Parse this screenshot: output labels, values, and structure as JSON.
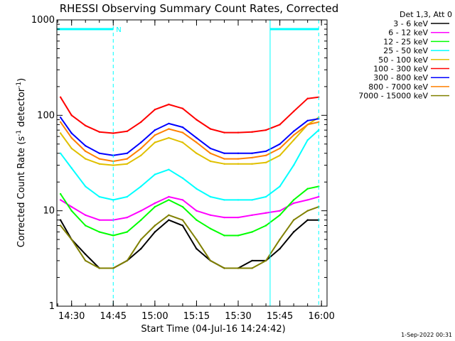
{
  "chart_data": {
    "type": "line",
    "title": "RHESSI Observing Summary Count Rates, Corrected",
    "ylabel_prefix": "Corrected Count Rate (s",
    "ylabel_sup1": "-1",
    "ylabel_mid": " detector",
    "ylabel_sup2": "-1",
    "ylabel_suffix": ")",
    "xlabel": "Start Time (04-Jul-16 14:24:42)",
    "stamp": "1-Sep-2022 00:31",
    "y_scale": "log",
    "ylim": [
      1,
      1000
    ],
    "xlim": [
      "14:24:42",
      "16:02:00"
    ],
    "x_ticks": [
      "14:30",
      "14:45",
      "15:00",
      "15:15",
      "15:30",
      "15:45",
      "16:00"
    ],
    "y_ticks": [
      "1",
      "10",
      "100",
      "1000"
    ],
    "legend_header": "Det 1,3, Att 0",
    "legend_position": "right",
    "night_intervals": [
      [
        "14:24:42",
        "14:45:00"
      ],
      [
        "15:41:30",
        "15:59:00"
      ]
    ],
    "saa_marker_text": "N",
    "night_color": "#00ffff",
    "x": [
      "14:26",
      "14:30",
      "14:35",
      "14:40",
      "14:45",
      "14:50",
      "14:55",
      "15:00",
      "15:05",
      "15:10",
      "15:15",
      "15:20",
      "15:25",
      "15:30",
      "15:35",
      "15:40",
      "15:45",
      "15:50",
      "15:55",
      "15:59"
    ],
    "series": [
      {
        "name": "3 - 6 keV",
        "color": "#000000",
        "values": [
          8,
          5,
          3.5,
          2.5,
          2.5,
          3,
          4,
          6,
          8,
          7,
          4,
          3,
          2.5,
          2.5,
          3,
          3,
          4,
          6,
          8,
          8
        ]
      },
      {
        "name": "6 - 12 keV",
        "color": "#ff00ff",
        "values": [
          13,
          11,
          9,
          8,
          8,
          8.5,
          10,
          12,
          14,
          13,
          10,
          9,
          8.5,
          8.5,
          9,
          9.5,
          10,
          12,
          13,
          14
        ]
      },
      {
        "name": "12 - 25 keV",
        "color": "#00ff00",
        "values": [
          15,
          10,
          7,
          6,
          5.5,
          6,
          8,
          11,
          13,
          11,
          8,
          6.5,
          5.5,
          5.5,
          6,
          7,
          9,
          13,
          17,
          18
        ]
      },
      {
        "name": "25 - 50 keV",
        "color": "#00ffff",
        "values": [
          40,
          28,
          18,
          14,
          13,
          14,
          18,
          24,
          27,
          22,
          17,
          14,
          13,
          13,
          13,
          14,
          18,
          30,
          55,
          70
        ]
      },
      {
        "name": "50 - 100 keV",
        "color": "#e0c000",
        "values": [
          65,
          45,
          35,
          31,
          30,
          31,
          38,
          52,
          58,
          52,
          40,
          33,
          31,
          31,
          31,
          32,
          38,
          55,
          80,
          95
        ]
      },
      {
        "name": "100 - 300 keV",
        "color": "#ff0000",
        "values": [
          155,
          100,
          78,
          67,
          65,
          68,
          85,
          115,
          130,
          118,
          90,
          72,
          66,
          66,
          67,
          70,
          80,
          110,
          150,
          155
        ]
      },
      {
        "name": "300 - 800 keV",
        "color": "#0000ff",
        "values": [
          95,
          65,
          48,
          40,
          38,
          40,
          52,
          70,
          82,
          75,
          58,
          45,
          40,
          40,
          40,
          42,
          50,
          68,
          88,
          92
        ]
      },
      {
        "name": "800 - 7000 keV",
        "color": "#ff8000",
        "values": [
          85,
          58,
          42,
          35,
          33,
          35,
          45,
          62,
          72,
          66,
          52,
          40,
          35,
          35,
          36,
          38,
          45,
          62,
          80,
          85
        ]
      },
      {
        "name": "7000 - 15000 keV",
        "color": "#808000",
        "values": [
          7,
          5,
          3,
          2.5,
          2.5,
          3,
          5,
          7,
          9,
          8,
          5,
          3,
          2.5,
          2.5,
          2.5,
          3,
          5,
          8,
          10,
          11
        ]
      }
    ]
  }
}
